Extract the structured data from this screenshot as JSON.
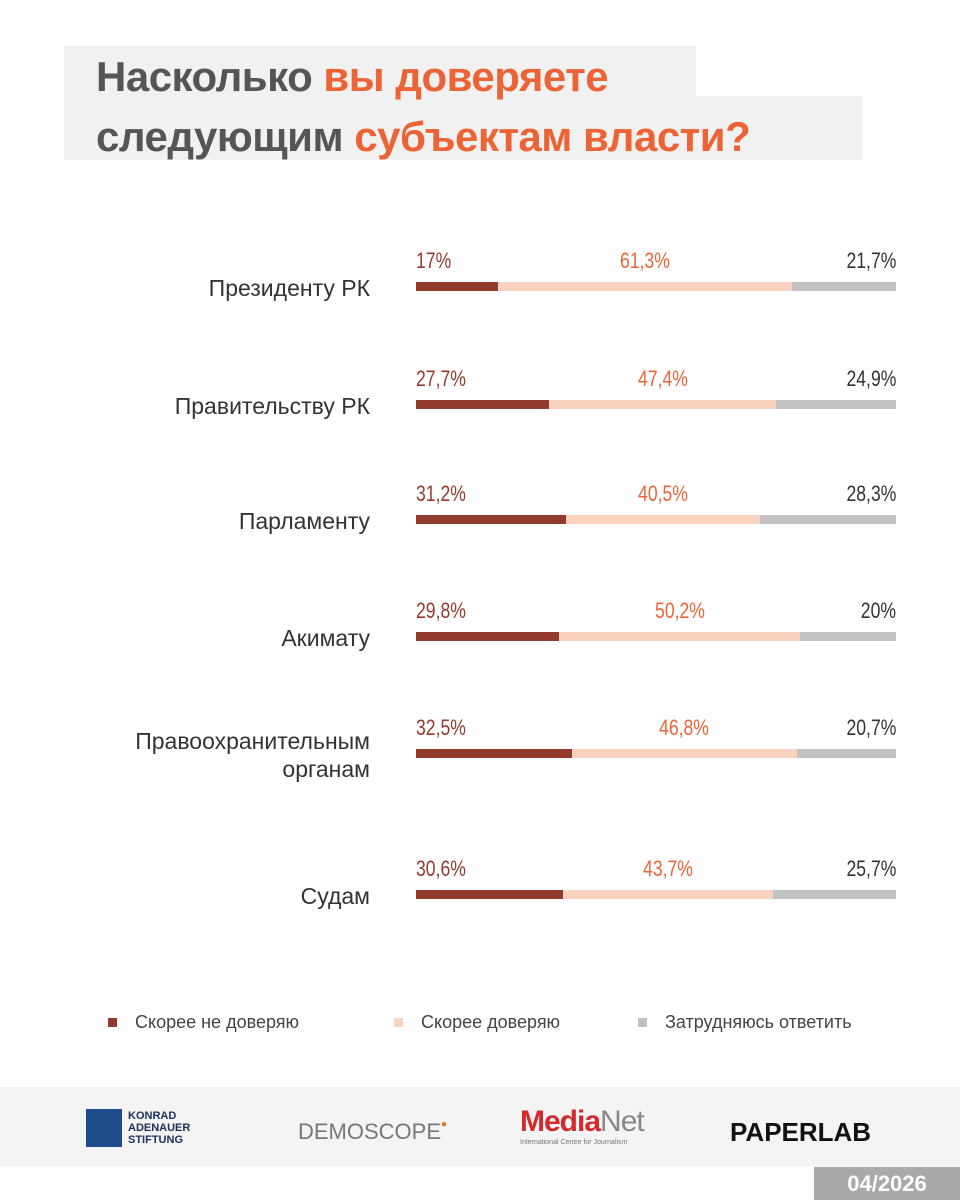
{
  "title": {
    "part1": "Насколько ",
    "part2": "вы доверяете",
    "part3": "следующим ",
    "part4": "субъектам власти?"
  },
  "chart_data": {
    "type": "bar",
    "stacked": true,
    "orientation": "horizontal",
    "categories": [
      "Президенту РК",
      "Правительству РК",
      "Парламенту",
      "Акимату",
      "Правоохранительным органам",
      "Судам"
    ],
    "series": [
      {
        "name": "Скорее не доверяю",
        "color": "#933a2e",
        "values": [
          17,
          27.7,
          31.2,
          29.8,
          32.5,
          30.6
        ],
        "labels": [
          "17%",
          "27,7%",
          "31,2%",
          "29,8%",
          "32,5%",
          "30,6%"
        ],
        "label_color": "#933a2e"
      },
      {
        "name": "Скорее доверяю",
        "color": "#fad3c0",
        "values": [
          61.3,
          47.4,
          40.5,
          50.2,
          46.8,
          43.7
        ],
        "labels": [
          "61,3%",
          "47,4%",
          "40,5%",
          "50,2%",
          "46,8%",
          "43,7%"
        ],
        "label_color": "#ec6436"
      },
      {
        "name": "Затрудняюсь ответить",
        "color": "#c2c2c2",
        "values": [
          21.7,
          24.9,
          28.3,
          20,
          20.7,
          25.7
        ],
        "labels": [
          "21,7%",
          "24,9%",
          "28,3%",
          "20%",
          "20,7%",
          "25,7%"
        ],
        "label_color": "#333333"
      }
    ],
    "legend_position": "bottom"
  },
  "footer": {
    "logos": [
      "KONRAD ADENAUER STIFTUNG",
      "DEMOSCOPE",
      "MediaNet International Centre for Journalism",
      "PAPERLAB"
    ],
    "date": "04/2026"
  }
}
